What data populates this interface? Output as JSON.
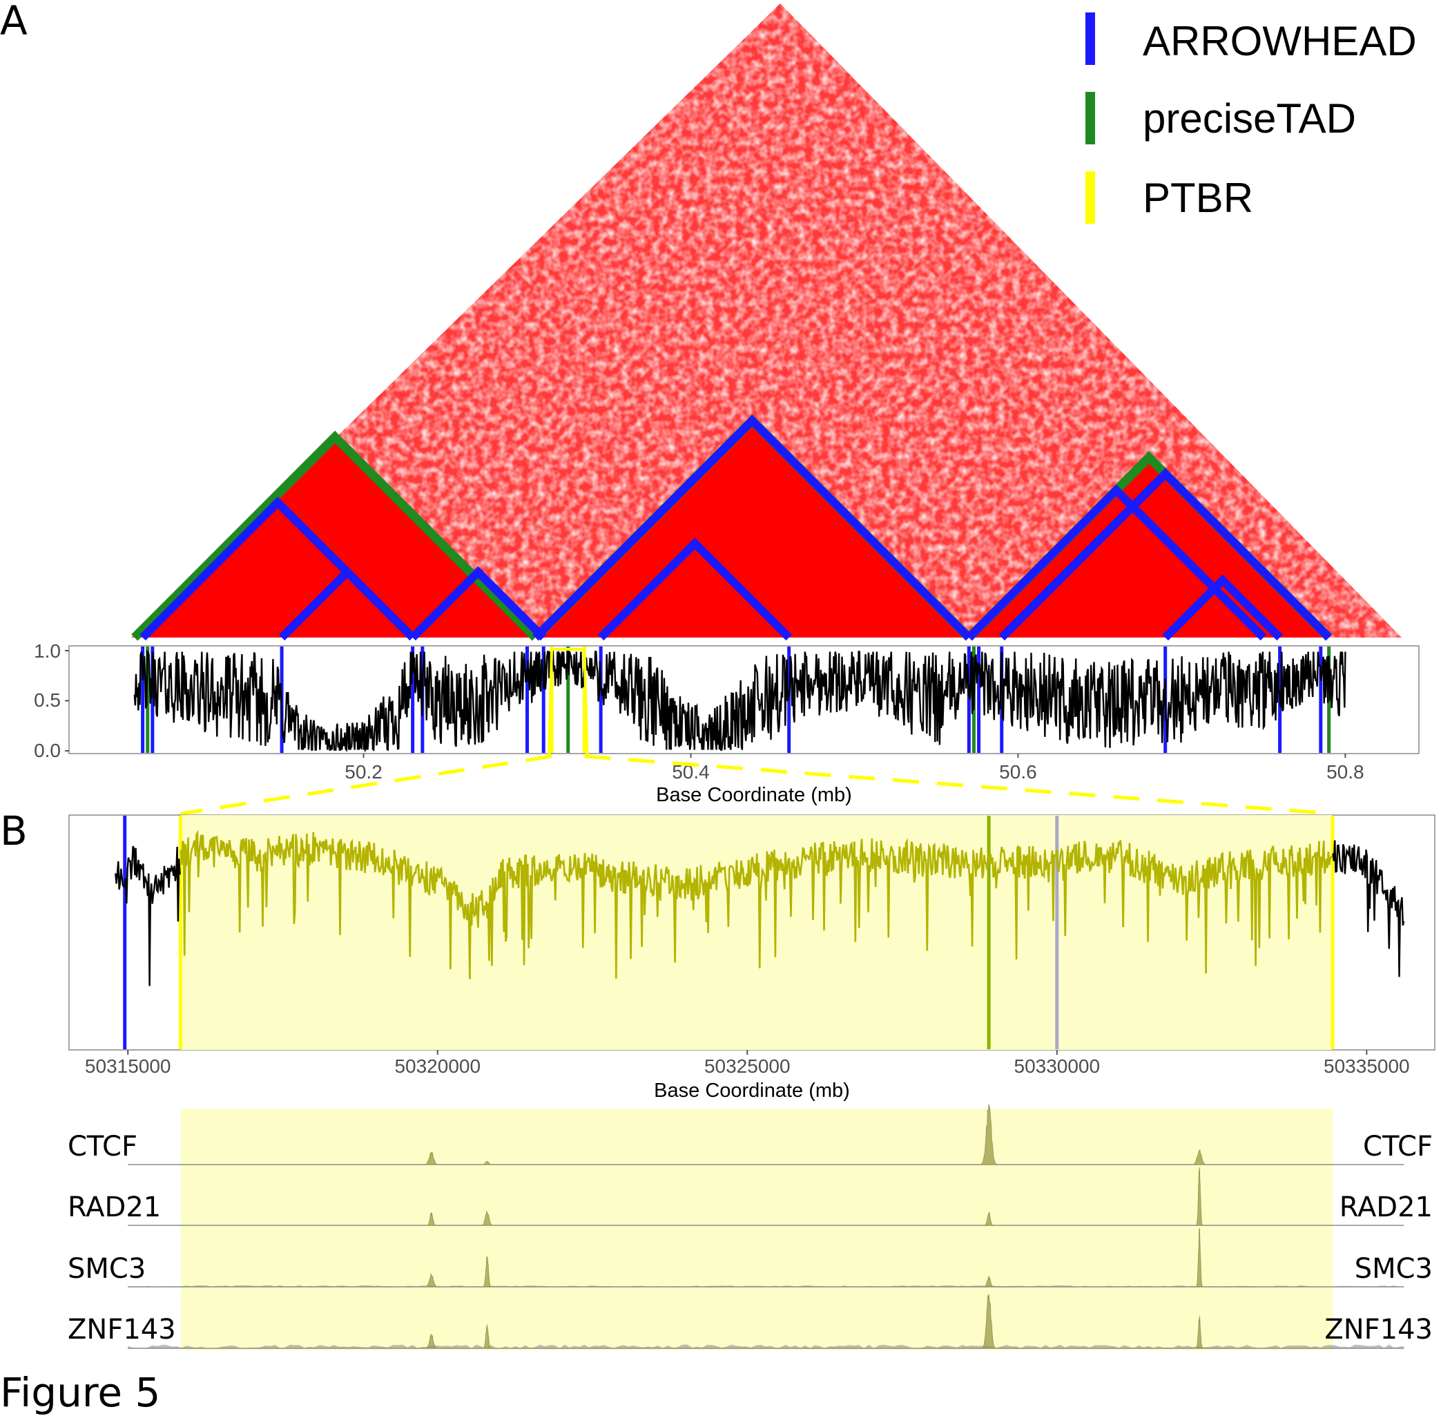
{
  "figure": {
    "caption": "Figure 5",
    "panel_a_letter": "A",
    "panel_b_letter": "B"
  },
  "colors": {
    "arrowhead": "#1a1aff",
    "precisetad": "#1f8a1f",
    "ptbr": "#ffff00",
    "heatmap": "#ff0000",
    "highlight_fill": "#fdfdc8",
    "zoom_line": "#b3b300",
    "zoom_gray_line": "#a8a8c8",
    "zoom_green_line": "#8cb400",
    "track_fill": "#b3b366",
    "track_outside_fill": "#888888"
  },
  "chart_data": [
    {
      "type": "heatmap",
      "panel": "A",
      "description_type": "triangular contact map",
      "x_range_mb": [
        50.05,
        50.8
      ],
      "legend": {
        "placement": "top-right",
        "entries": [
          {
            "label": "ARROWHEAD",
            "color": "#1a1aff"
          },
          {
            "label": "preciseTAD",
            "color": "#1f8a1f"
          },
          {
            "label": "PTBR",
            "color": "#ffff00"
          }
        ]
      },
      "domains": [
        {
          "caller": "preciseTAD",
          "start": 50.06,
          "end": 50.305
        },
        {
          "caller": "preciseTAD",
          "start": 50.305,
          "end": 50.57
        },
        {
          "caller": "preciseTAD",
          "start": 50.57,
          "end": 50.79
        },
        {
          "caller": "ARROWHEAD",
          "start": 50.065,
          "end": 50.23
        },
        {
          "caller": "ARROWHEAD",
          "start": 50.15,
          "end": 50.23
        },
        {
          "caller": "ARROWHEAD",
          "start": 50.23,
          "end": 50.31
        },
        {
          "caller": "ARROWHEAD",
          "start": 50.305,
          "end": 50.57
        },
        {
          "caller": "ARROWHEAD",
          "start": 50.345,
          "end": 50.46
        },
        {
          "caller": "ARROWHEAD",
          "start": 50.57,
          "end": 50.75
        },
        {
          "caller": "ARROWHEAD",
          "start": 50.59,
          "end": 50.79
        },
        {
          "caller": "ARROWHEAD",
          "start": 50.69,
          "end": 50.76
        }
      ]
    },
    {
      "type": "line",
      "panel": "A",
      "xlabel": "Base Coordinate (mb)",
      "ylabel": "",
      "xlim": [
        50.02,
        50.845
      ],
      "ylim": [
        0.0,
        1.0
      ],
      "x_ticks": [
        "50.2",
        "50.4",
        "50.6",
        "50.8"
      ],
      "x_tick_values": [
        50.2,
        50.4,
        50.6,
        50.8
      ],
      "y_ticks": [
        "1.0",
        "0.5",
        "0.0"
      ],
      "y_tick_values": [
        1.0,
        0.5,
        0.0
      ],
      "x_start": 50.06,
      "x_end": 50.8,
      "profile": [
        [
          50.06,
          0.72
        ],
        [
          50.08,
          0.66
        ],
        [
          50.1,
          0.58
        ],
        [
          50.12,
          0.55
        ],
        [
          50.14,
          0.5
        ],
        [
          50.15,
          0.45
        ],
        [
          50.16,
          0.18
        ],
        [
          50.175,
          0.08
        ],
        [
          50.19,
          0.1
        ],
        [
          50.205,
          0.15
        ],
        [
          50.22,
          0.35
        ],
        [
          50.23,
          0.75
        ],
        [
          50.24,
          0.55
        ],
        [
          50.26,
          0.42
        ],
        [
          50.28,
          0.55
        ],
        [
          50.3,
          0.75
        ],
        [
          50.32,
          0.85
        ],
        [
          50.34,
          0.8
        ],
        [
          50.36,
          0.6
        ],
        [
          50.38,
          0.45
        ],
        [
          50.4,
          0.2
        ],
        [
          50.415,
          0.18
        ],
        [
          50.43,
          0.35
        ],
        [
          50.45,
          0.55
        ],
        [
          50.47,
          0.68
        ],
        [
          50.5,
          0.72
        ],
        [
          50.53,
          0.6
        ],
        [
          50.55,
          0.5
        ],
        [
          50.57,
          0.7
        ],
        [
          50.6,
          0.62
        ],
        [
          50.63,
          0.5
        ],
        [
          50.66,
          0.45
        ],
        [
          50.69,
          0.5
        ],
        [
          50.72,
          0.6
        ],
        [
          50.75,
          0.62
        ],
        [
          50.78,
          0.8
        ],
        [
          50.8,
          0.65
        ]
      ],
      "boundaries": [
        {
          "caller": "ARROWHEAD",
          "x": 50.065
        },
        {
          "caller": "ARROWHEAD",
          "x": 50.071
        },
        {
          "caller": "ARROWHEAD",
          "x": 50.15
        },
        {
          "caller": "ARROWHEAD",
          "x": 50.23
        },
        {
          "caller": "ARROWHEAD",
          "x": 50.236
        },
        {
          "caller": "ARROWHEAD",
          "x": 50.3
        },
        {
          "caller": "ARROWHEAD",
          "x": 50.31
        },
        {
          "caller": "ARROWHEAD",
          "x": 50.345
        },
        {
          "caller": "ARROWHEAD",
          "x": 50.46
        },
        {
          "caller": "ARROWHEAD",
          "x": 50.57
        },
        {
          "caller": "ARROWHEAD",
          "x": 50.576
        },
        {
          "caller": "ARROWHEAD",
          "x": 50.59
        },
        {
          "caller": "ARROWHEAD",
          "x": 50.69
        },
        {
          "caller": "ARROWHEAD",
          "x": 50.76
        },
        {
          "caller": "ARROWHEAD",
          "x": 50.785
        },
        {
          "caller": "preciseTAD",
          "x": 50.068
        },
        {
          "caller": "preciseTAD",
          "x": 50.325
        },
        {
          "caller": "preciseTAD",
          "x": 50.573
        },
        {
          "caller": "preciseTAD",
          "x": 50.79
        },
        {
          "caller": "PTBR",
          "x": 50.315
        },
        {
          "caller": "PTBR",
          "x": 50.335
        }
      ],
      "zoom_region": [
        50.315,
        50.335
      ]
    },
    {
      "type": "line",
      "panel": "B",
      "xlabel": "Base Coordinate (mb)",
      "ylabel": "",
      "xlim": [
        50314050,
        50336100
      ],
      "x_ticks": [
        "50315000",
        "50320000",
        "50325000",
        "50330000",
        "50335000"
      ],
      "x_tick_values": [
        50315000,
        50320000,
        50325000,
        50330000,
        50335000
      ],
      "x_start": 50314800,
      "x_end": 50335600,
      "highlight": [
        50315850,
        50334450
      ],
      "profile": [
        [
          50314800,
          0.7
        ],
        [
          50315100,
          0.8
        ],
        [
          50315400,
          0.65
        ],
        [
          50315700,
          0.75
        ],
        [
          50316000,
          0.85
        ],
        [
          50317000,
          0.82
        ],
        [
          50318000,
          0.85
        ],
        [
          50319000,
          0.8
        ],
        [
          50320000,
          0.7
        ],
        [
          50320500,
          0.55
        ],
        [
          50321000,
          0.72
        ],
        [
          50322000,
          0.78
        ],
        [
          50323000,
          0.72
        ],
        [
          50324000,
          0.68
        ],
        [
          50325000,
          0.75
        ],
        [
          50326000,
          0.8
        ],
        [
          50327000,
          0.82
        ],
        [
          50328000,
          0.8
        ],
        [
          50329000,
          0.78
        ],
        [
          50330000,
          0.8
        ],
        [
          50331000,
          0.82
        ],
        [
          50332000,
          0.7
        ],
        [
          50333000,
          0.78
        ],
        [
          50334000,
          0.8
        ],
        [
          50334500,
          0.82
        ],
        [
          50335000,
          0.78
        ],
        [
          50335600,
          0.55
        ]
      ],
      "vertical_lines": [
        {
          "caller": "ARROWHEAD",
          "x": 50314950,
          "color": "#1a1aff"
        },
        {
          "caller": "PTBR",
          "x": 50315850,
          "color": "#ffff00"
        },
        {
          "caller": "preciseTAD",
          "x": 50328900,
          "color": "#8cb400"
        },
        {
          "caller": "other",
          "x": 50330000,
          "color": "#a8a8c8"
        },
        {
          "caller": "PTBR",
          "x": 50334450,
          "color": "#ffff00"
        }
      ]
    },
    {
      "type": "area",
      "panel": "B-tracks",
      "xlim": [
        50314050,
        50336100
      ],
      "x_start": 50315000,
      "x_end": 50335600,
      "tracks": [
        {
          "name": "CTCF",
          "peaks": [
            [
              50319900,
              0.22,
              120
            ],
            [
              50320800,
              0.06,
              90
            ],
            [
              50328900,
              1.0,
              140
            ],
            [
              50332300,
              0.25,
              120
            ]
          ],
          "baseline": 0.0
        },
        {
          "name": "RAD21",
          "peaks": [
            [
              50319900,
              0.22,
              80
            ],
            [
              50320800,
              0.25,
              100
            ],
            [
              50328900,
              0.22,
              80
            ],
            [
              50332300,
              1.0,
              55
            ]
          ],
          "baseline": 0.0
        },
        {
          "name": "SMC3",
          "peaks": [
            [
              50319900,
              0.22,
              110
            ],
            [
              50320800,
              0.55,
              70
            ],
            [
              50328900,
              0.18,
              90
            ],
            [
              50332300,
              1.0,
              55
            ]
          ],
          "baseline": 0.02
        },
        {
          "name": "ZNF143",
          "peaks": [
            [
              50319900,
              0.25,
              100
            ],
            [
              50320800,
              0.4,
              70
            ],
            [
              50328900,
              1.0,
              120
            ],
            [
              50332300,
              0.55,
              60
            ]
          ],
          "baseline": 0.05
        }
      ]
    }
  ]
}
